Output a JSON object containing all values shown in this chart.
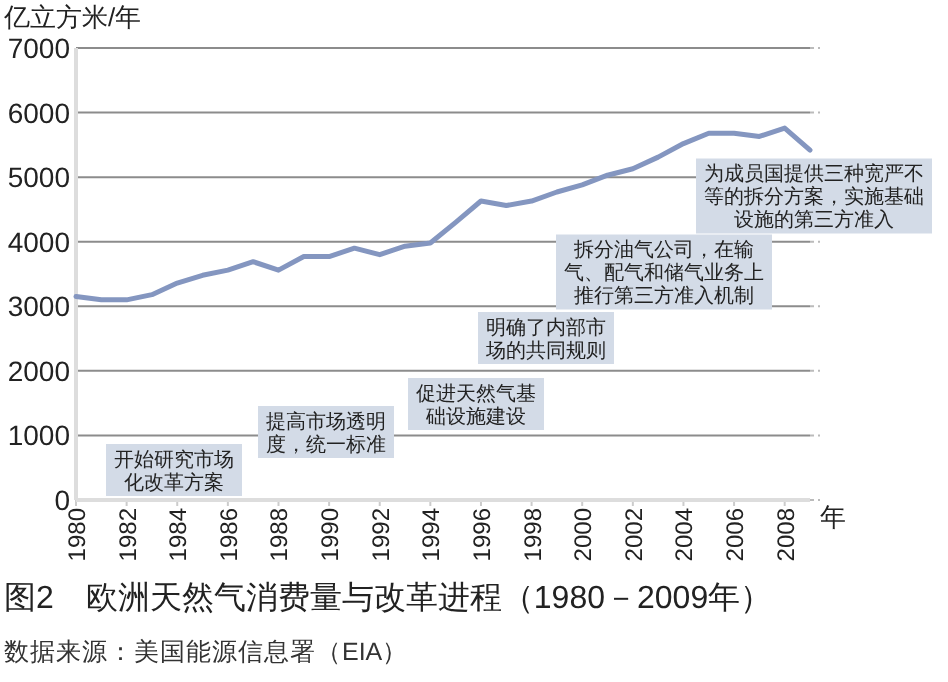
{
  "chart_data": {
    "type": "line",
    "title": "图2　欧洲天然气消费量与改革进程（1980－2009年）",
    "ylabel": "亿立方米/年",
    "xlabel": "年",
    "x": [
      1980,
      1981,
      1982,
      1983,
      1984,
      1985,
      1986,
      1987,
      1988,
      1989,
      1990,
      1991,
      1992,
      1993,
      1994,
      1995,
      1996,
      1997,
      1998,
      1999,
      2000,
      2001,
      2002,
      2003,
      2004,
      2005,
      2006,
      2007,
      2008,
      2009
    ],
    "series": [
      {
        "color": "#8496c0",
        "values": [
          3150,
          3100,
          3100,
          3180,
          3360,
          3480,
          3560,
          3690,
          3560,
          3770,
          3770,
          3900,
          3800,
          3930,
          3980,
          4300,
          4630,
          4560,
          4630,
          4770,
          4880,
          5030,
          5130,
          5310,
          5520,
          5680,
          5680,
          5630,
          5760,
          5420
        ]
      }
    ],
    "xlim": [
      1980,
      2009
    ],
    "xticks": [
      1980,
      1982,
      1984,
      1986,
      1988,
      1990,
      1992,
      1994,
      1996,
      1998,
      2000,
      2002,
      2004,
      2006,
      2008
    ],
    "ylim": [
      0,
      7000
    ],
    "yticks": [
      0,
      1000,
      2000,
      3000,
      4000,
      5000,
      6000,
      7000
    ],
    "grid": "y",
    "marker": "none",
    "line_style": "solid",
    "annotations": [
      "开始研究市场化改革方案",
      "提高市场透明度，统一标准",
      "促进天然气基础设施建设",
      "明确了内部市场的共同规则",
      "拆分油气公司，在输气、配气和储气业务上推行第三方准入机制",
      "为成员国提供三种宽严不等的拆分方案，实施基础设施的第三方准入",
      "数据来源：美国能源信息署（EIA）"
    ]
  }
}
